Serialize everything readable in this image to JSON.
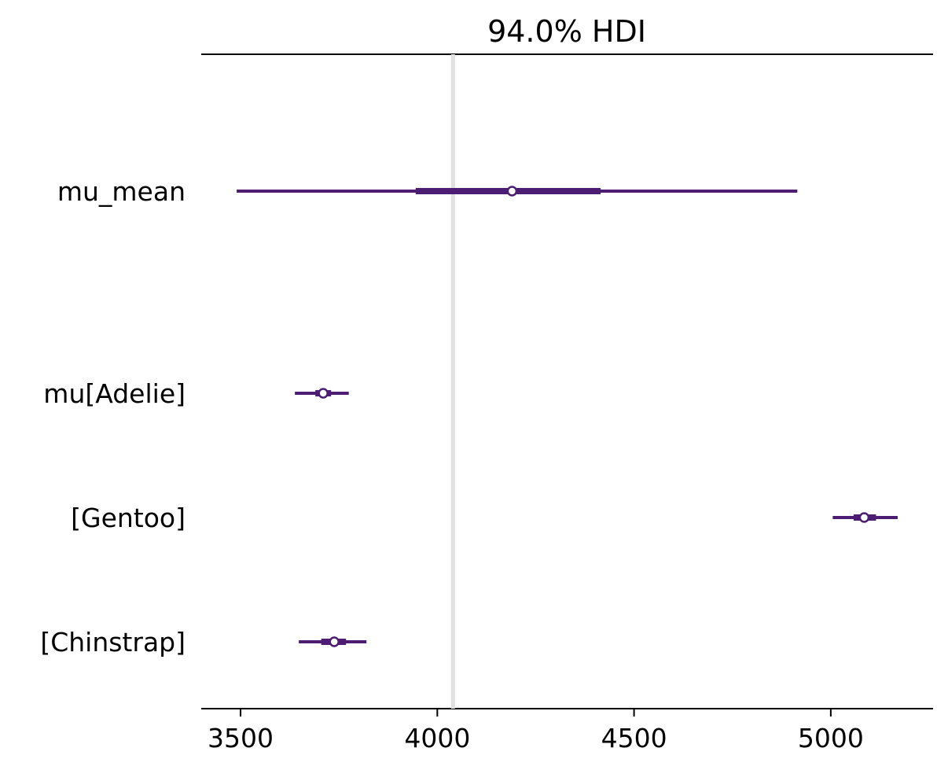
{
  "chart_data": {
    "type": "forest",
    "title": "94.0% HDI",
    "xlim": [
      3400,
      5260
    ],
    "x_ticks": [
      3500,
      4000,
      4500,
      5000
    ],
    "x_tick_labels": [
      "3500",
      "4000",
      "4500",
      "5000"
    ],
    "reference_line": 4040,
    "series_color": "#4c1d73",
    "reference_line_color": "#e0e0e0",
    "rows": [
      {
        "label": "mu_mean",
        "hdi_low": 3490,
        "hdi_high": 4915,
        "iqr_low": 3945,
        "iqr_high": 4415,
        "point": 4190
      },
      {
        "label": "mu[Adelie]",
        "hdi_low": 3638,
        "hdi_high": 3775,
        "iqr_low": 3690,
        "iqr_high": 3730,
        "point": 3710
      },
      {
        "label": "[Gentoo]",
        "hdi_low": 5005,
        "hdi_high": 5170,
        "iqr_low": 5058,
        "iqr_high": 5115,
        "point": 5085
      },
      {
        "label": "[Chinstrap]",
        "hdi_low": 3648,
        "hdi_high": 3820,
        "iqr_low": 3705,
        "iqr_high": 3768,
        "point": 3738
      }
    ]
  }
}
